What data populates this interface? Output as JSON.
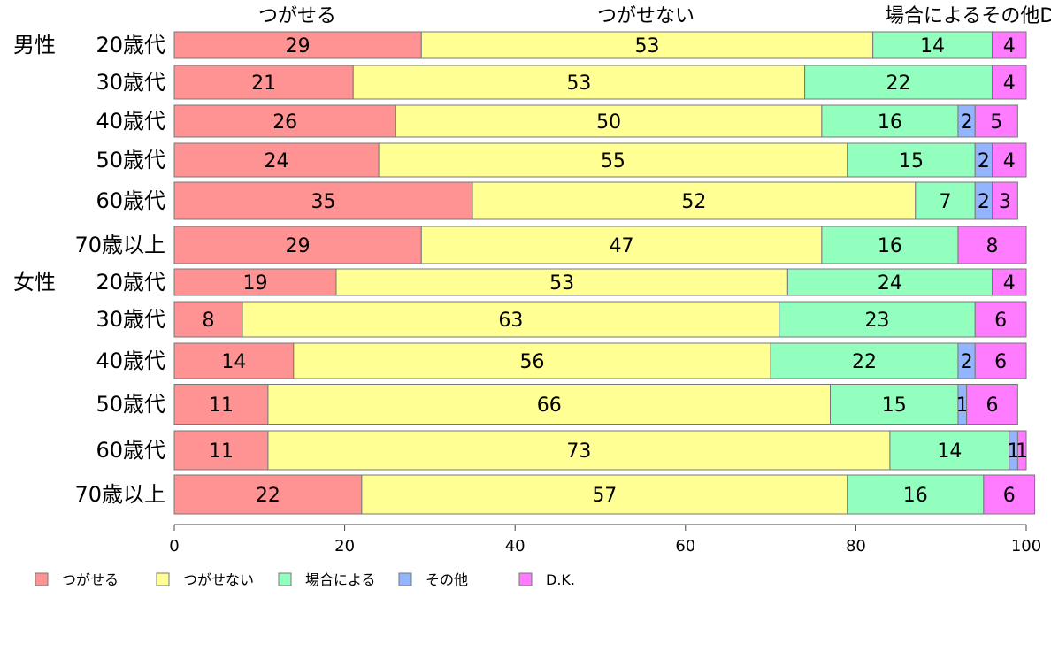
{
  "chart_data": {
    "type": "bar",
    "orientation": "horizontal",
    "stacked": true,
    "top_labels": [
      "つがせる",
      "つがせない",
      "場合によるその他D.K."
    ],
    "group_labels": [
      "男性",
      "女性"
    ],
    "categories": [
      "20歳代",
      "30歳代",
      "40歳代",
      "50歳代",
      "60歳代",
      "70歳以上",
      "20歳代",
      "30歳代",
      "40歳代",
      "50歳代",
      "60歳代",
      "70歳以上"
    ],
    "series": [
      {
        "name": "つがせる",
        "color": "#ff9393",
        "values": [
          29,
          21,
          26,
          24,
          35,
          29,
          19,
          8,
          14,
          11,
          11,
          22
        ]
      },
      {
        "name": "つがせない",
        "color": "#ffff93",
        "values": [
          53,
          53,
          50,
          55,
          52,
          47,
          53,
          63,
          56,
          66,
          73,
          57
        ]
      },
      {
        "name": "場合による",
        "color": "#93ffbe",
        "values": [
          14,
          22,
          16,
          15,
          7,
          16,
          24,
          23,
          22,
          15,
          14,
          16
        ]
      },
      {
        "name": "その他",
        "color": "#93b4ff",
        "values": [
          0,
          0,
          2,
          2,
          2,
          0,
          0,
          0,
          2,
          1,
          1,
          0
        ]
      },
      {
        "name": "D.K.",
        "color": "#ff7bff",
        "values": [
          4,
          4,
          5,
          4,
          3,
          8,
          4,
          6,
          6,
          6,
          1,
          6
        ]
      }
    ],
    "xlim": [
      0,
      100
    ],
    "xticks": [
      0,
      20,
      40,
      60,
      80,
      100
    ],
    "legend_position": "bottom"
  }
}
